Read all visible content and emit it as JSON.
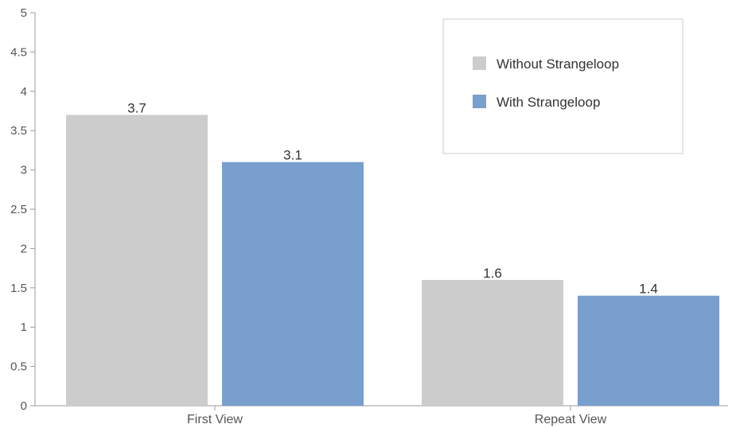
{
  "chart_data": {
    "type": "bar",
    "categories": [
      "First View",
      "Repeat View"
    ],
    "series": [
      {
        "name": "Without Strangeloop",
        "values": [
          3.7,
          1.6
        ],
        "color": "#cccccc"
      },
      {
        "name": "With Strangeloop",
        "values": [
          3.1,
          1.4
        ],
        "color": "#789fce"
      }
    ],
    "data_labels": [
      [
        "3.7",
        "1.6"
      ],
      [
        "3.1",
        "1.4"
      ]
    ],
    "ylim": [
      0,
      5
    ],
    "y_ticks": [
      "0",
      "0.5",
      "1",
      "1.5",
      "2",
      "2.5",
      "3",
      "3.5",
      "4",
      "4.5",
      "5"
    ],
    "y_tick_values": [
      0,
      0.5,
      1,
      1.5,
      2,
      2.5,
      3,
      3.5,
      4,
      4.5,
      5
    ],
    "grid": false,
    "legend_position": "top-right",
    "title": "",
    "xlabel": "",
    "ylabel": ""
  }
}
